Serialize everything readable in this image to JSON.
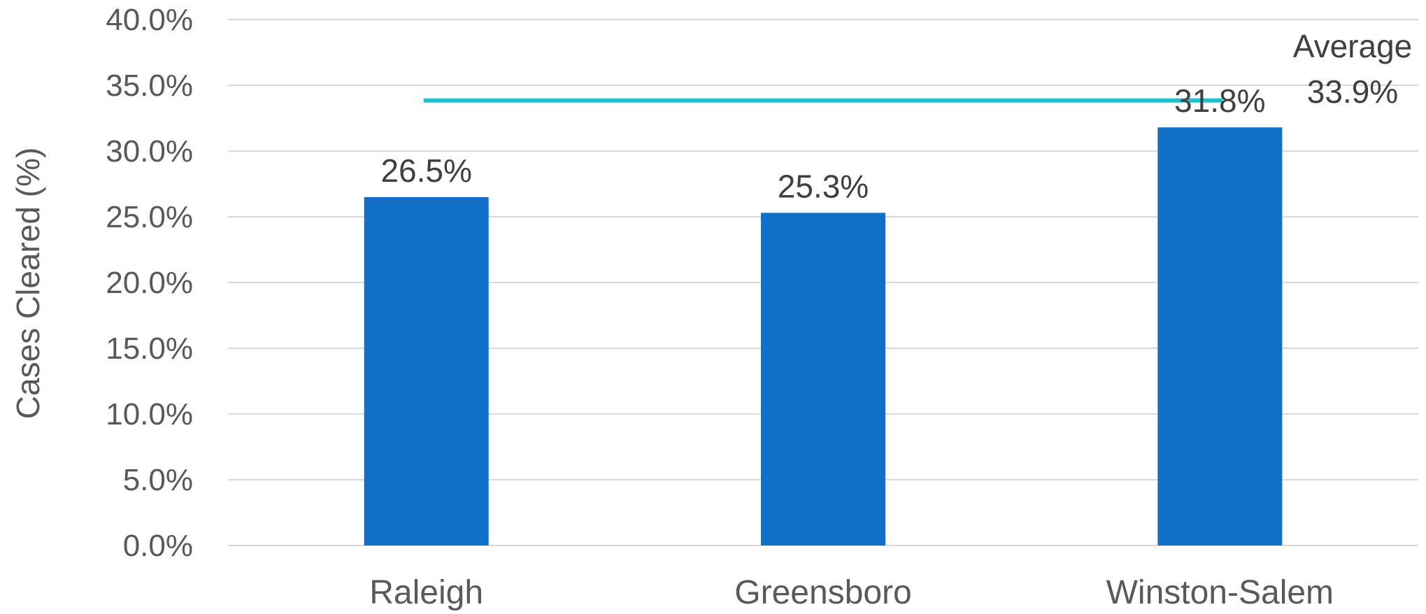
{
  "chart_data": {
    "type": "bar",
    "categories": [
      "Raleigh",
      "Greensboro",
      "Winston-Salem"
    ],
    "values": [
      26.5,
      25.3,
      31.8
    ],
    "value_labels": [
      "26.5%",
      "25.3%",
      "31.8%"
    ],
    "ylabel": "Cases Cleared (%)",
    "xlabel": "",
    "title": "",
    "ylim": [
      0,
      40
    ],
    "yticks": [
      0,
      5,
      10,
      15,
      20,
      25,
      30,
      35,
      40
    ],
    "ytick_labels": [
      "0.0%",
      "5.0%",
      "10.0%",
      "15.0%",
      "20.0%",
      "25.0%",
      "30.0%",
      "35.0%",
      "40.0%"
    ],
    "grid": true,
    "legend": "none",
    "reference_line": {
      "value": 33.9,
      "label_line1": "Average",
      "label_line2": "33.9%"
    },
    "colors": {
      "bar": "#1070c8",
      "reference_line": "#17c3cf",
      "gridline": "#d9d9d9"
    }
  }
}
